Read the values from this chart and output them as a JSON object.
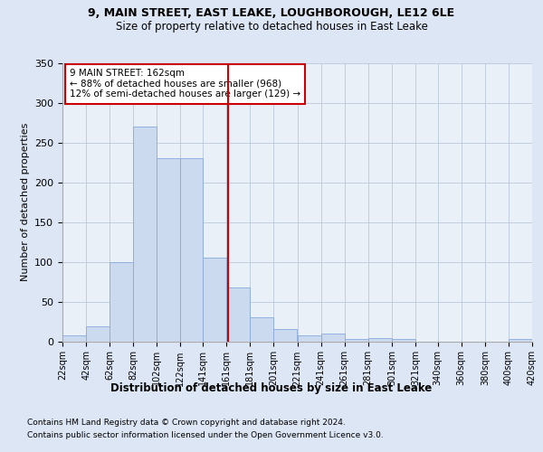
{
  "title1": "9, MAIN STREET, EAST LEAKE, LOUGHBOROUGH, LE12 6LE",
  "title2": "Size of property relative to detached houses in East Leake",
  "xlabel": "Distribution of detached houses by size in East Leake",
  "ylabel": "Number of detached properties",
  "annotation_title": "9 MAIN STREET: 162sqm",
  "annotation_line1": "← 88% of detached houses are smaller (968)",
  "annotation_line2": "12% of semi-detached houses are larger (129) →",
  "property_size": 162,
  "bar_color": "#ccdaf0",
  "bar_edge_color": "#88aadd",
  "marker_color": "#cc0000",
  "bin_edges": [
    22,
    42,
    62,
    82,
    102,
    122,
    141,
    161,
    181,
    201,
    221,
    241,
    261,
    281,
    301,
    321,
    340,
    360,
    380,
    400,
    420
  ],
  "bar_heights": [
    7,
    19,
    100,
    270,
    230,
    230,
    105,
    68,
    30,
    15,
    7,
    10,
    3,
    4,
    3,
    0,
    0,
    0,
    0,
    3
  ],
  "ylim": [
    0,
    350
  ],
  "yticks": [
    0,
    50,
    100,
    150,
    200,
    250,
    300,
    350
  ],
  "footer1": "Contains HM Land Registry data © Crown copyright and database right 2024.",
  "footer2": "Contains public sector information licensed under the Open Government Licence v3.0.",
  "bg_color": "#dde6f5",
  "plot_bg_color": "#eaf0f8"
}
